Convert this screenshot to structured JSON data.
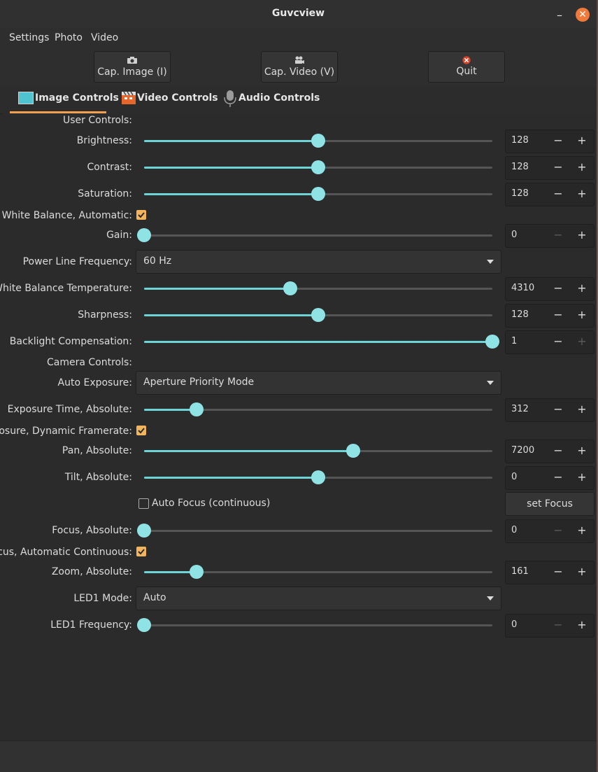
{
  "window": {
    "title": "Guvcview"
  },
  "menu": [
    "Settings",
    "Photo",
    "Video"
  ],
  "toolbar": {
    "cap_image": "Cap. Image (I)",
    "cap_video": "Cap. Video (V)",
    "quit": "Quit"
  },
  "tabs": {
    "image": "Image Controls",
    "video": "Video Controls",
    "audio": "Audio Controls"
  },
  "sections": {
    "user": "User Controls:",
    "camera": "Camera Controls:"
  },
  "controls": {
    "brightness": {
      "label": "Brightness:",
      "value": "128",
      "level": 0.5
    },
    "contrast": {
      "label": "Contrast:",
      "value": "128",
      "level": 0.5
    },
    "saturation": {
      "label": "Saturation:",
      "value": "128",
      "level": 0.5
    },
    "wb_auto": {
      "label": "White Balance, Automatic:",
      "checked": true
    },
    "gain": {
      "label": "Gain:",
      "value": "0",
      "level": 0
    },
    "power_line": {
      "label": "Power Line Frequency:",
      "value": "60 Hz"
    },
    "wb_temp": {
      "label": "White Balance Temperature:",
      "value": "4310",
      "level": 0.42
    },
    "sharpness": {
      "label": "Sharpness:",
      "value": "128",
      "level": 0.5
    },
    "backlight": {
      "label": "Backlight Compensation:",
      "value": "1",
      "level": 1.0
    },
    "auto_exposure": {
      "label": "Auto Exposure:",
      "value": "Aperture Priority Mode"
    },
    "exposure_time": {
      "label": "Exposure Time, Absolute:",
      "value": "312",
      "level": 0.15
    },
    "exposure_dyn": {
      "label": "Exposure, Dynamic Framerate:",
      "checked": true
    },
    "pan": {
      "label": "Pan, Absolute:",
      "value": "7200",
      "level": 0.6
    },
    "tilt": {
      "label": "Tilt, Absolute:",
      "value": "0",
      "level": 0.5
    },
    "auto_focus": {
      "label": "Auto Focus (continuous)",
      "checked": false,
      "button": "set Focus"
    },
    "focus_abs": {
      "label": "Focus, Absolute:",
      "value": "0",
      "level": 0
    },
    "focus_auto": {
      "label": "Focus, Automatic Continuous:",
      "checked": true
    },
    "zoom": {
      "label": "Zoom, Absolute:",
      "value": "161",
      "level": 0.15
    },
    "led_mode": {
      "label": "LED1 Mode:",
      "value": "Auto"
    },
    "led_freq": {
      "label": "LED1 Frequency:",
      "value": "0",
      "level": 0
    }
  },
  "spin_symbols": {
    "minus": "−",
    "plus": "+"
  },
  "colors": {
    "accent": "#8fe3e5",
    "check": "#f2b55c",
    "close": "#f07a3a"
  }
}
